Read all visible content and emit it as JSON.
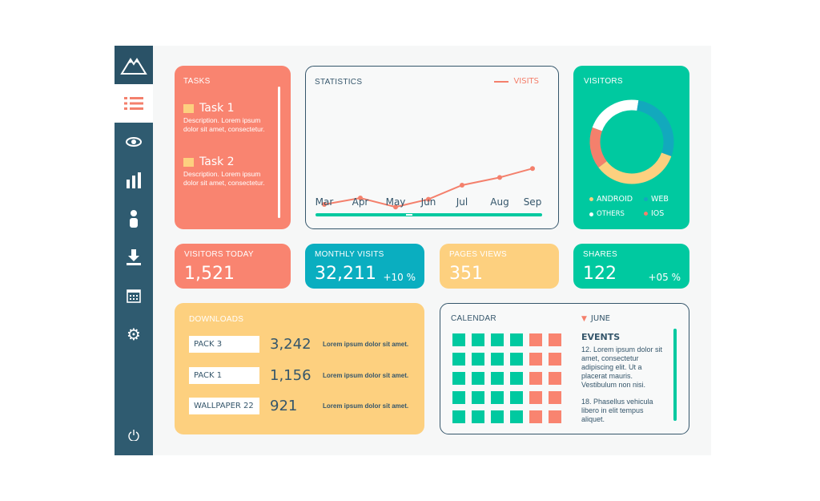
{
  "sidebar": {
    "items": [
      {
        "icon": "mountain-logo-icon"
      },
      {
        "icon": "list-icon",
        "active": true
      },
      {
        "icon": "eye-icon"
      },
      {
        "icon": "bar-chart-icon"
      },
      {
        "icon": "user-icon"
      },
      {
        "icon": "download-icon"
      },
      {
        "icon": "calendar-icon"
      },
      {
        "icon": "gear-icon"
      },
      {
        "icon": "power-icon"
      }
    ]
  },
  "tasks": {
    "title": "TASKS",
    "items": [
      {
        "name": "Task 1",
        "description": "Description. Lorem ipsum dolor sit amet, consectetur."
      },
      {
        "name": "Task 2",
        "description": "Description. Lorem ipsum dolor sit amet, consectetur."
      }
    ]
  },
  "statistics": {
    "title": "STATISTICS"
  },
  "chart_data": {
    "type": "line",
    "categories": [
      "Mar",
      "Apr",
      "May",
      "Jun",
      "Jul",
      "Aug",
      "Sep"
    ],
    "series": [
      {
        "name": "VISITS",
        "values": [
          30,
          35,
          28,
          34,
          45,
          51,
          58
        ]
      }
    ],
    "ylim": [
      0,
      100
    ],
    "grid": false,
    "legend": "top-right",
    "color": "#f4806c"
  },
  "visitors": {
    "title": "VISITORS",
    "segments": [
      {
        "name": "OTHERS",
        "share": 22,
        "color": "#ffffff"
      },
      {
        "name": "WEB",
        "share": 28,
        "color": "#12a9bd"
      },
      {
        "name": "ANDROID",
        "share": 34,
        "color": "#fdd07f"
      },
      {
        "name": "IOS",
        "share": 16,
        "color": "#f4806c"
      }
    ],
    "legend": [
      "ANDROID",
      "WEB",
      "OTHERS",
      "IOS"
    ]
  },
  "stats": [
    {
      "title": "VISITORS TODAY",
      "value": "1,521",
      "change": ""
    },
    {
      "title": "MONTHLY VISITS",
      "value": "32,211",
      "change": "+10 %"
    },
    {
      "title": "PAGES VIEWS",
      "value": "351",
      "change": ""
    },
    {
      "title": "SHARES",
      "value": "122",
      "change": "+05 %"
    }
  ],
  "downloads": {
    "title": "DOWNLOADS",
    "items": [
      {
        "label": "PACK 3",
        "count": "3,242",
        "text": "Lorem ipsum dolor sit amet."
      },
      {
        "label": "PACK 1",
        "count": "1,156",
        "text": "Lorem ipsum dolor sit amet."
      },
      {
        "label": "WALLPAPER 22",
        "count": "921",
        "text": "Lorem ipsum dolor sit amet."
      }
    ]
  },
  "calendar": {
    "title": "CALENDAR",
    "month": "JUNE",
    "events_title": "EVENTS",
    "events": [
      "12. Lorem ipsum dolor sit amet, consectetur adipiscing elit. Ut a placerat mauris. Vestibulum non nisi.",
      "18. Phasellus vehicula libero in elit tempus aliquet."
    ]
  },
  "colors": {
    "coral": "#f98470",
    "teal": "#00c9a0",
    "cyan": "#0aaec0",
    "yellow": "#fdd07f",
    "navy": "#2f5b70"
  }
}
